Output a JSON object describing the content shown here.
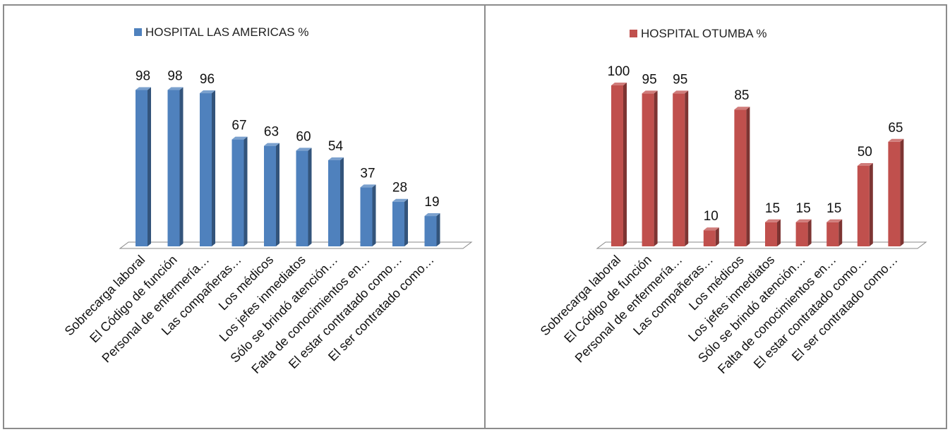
{
  "chart_data": [
    {
      "type": "bar",
      "series": [
        {
          "name": "HOSPITAL LAS AMERICAS %",
          "values": [
            98,
            98,
            96,
            67,
            63,
            60,
            54,
            37,
            28,
            19
          ],
          "color": "#4f81bd"
        }
      ],
      "categories": [
        "Sobrecarga laboral",
        "El Código de función",
        "Personal de enfermería…",
        "Las compañeras…",
        "Los médicos",
        "Los jefes inmediatos",
        "Sólo se brindó atención…",
        "Falta de conocimientos en…",
        "El estar contratado como…",
        "El ser contratado como…"
      ],
      "ylim": [
        0,
        100
      ],
      "legend_position": "top"
    },
    {
      "type": "bar",
      "series": [
        {
          "name": "HOSPITAL OTUMBA %",
          "values": [
            100,
            95,
            95,
            10,
            85,
            15,
            15,
            15,
            50,
            65
          ],
          "color": "#c0504d"
        }
      ],
      "categories": [
        "Sobrecarga laboral",
        "El Código de función",
        "Personal de enfermería…",
        "Las compañeras…",
        "Los médicos",
        "Los jefes inmediatos",
        "Sólo se brindó atención…",
        "Falta de conocimientos en…",
        "El estar contratado como…",
        "El ser contratado como…"
      ],
      "ylim": [
        0,
        100
      ],
      "legend_position": "top"
    }
  ]
}
